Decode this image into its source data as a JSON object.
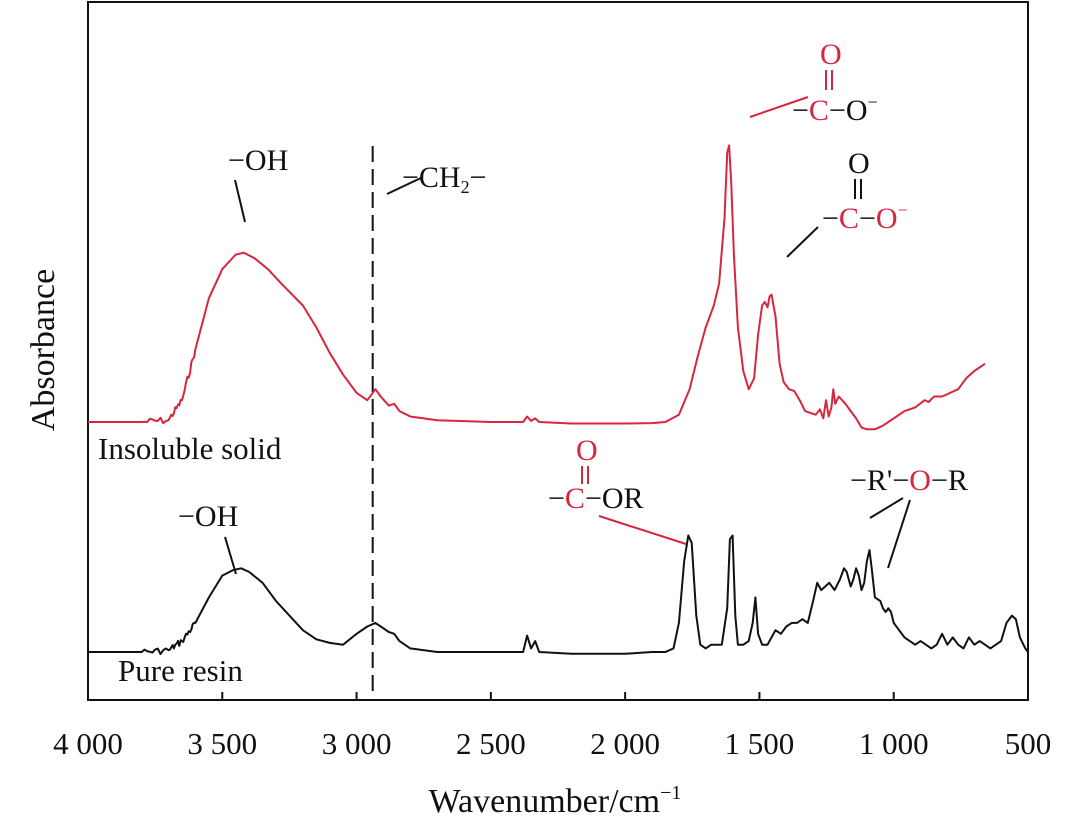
{
  "chart_data": {
    "type": "line",
    "title": "",
    "xlabel": "Wavenumber/cm",
    "xlabel_sup": "−1",
    "ylabel": "Absorbance",
    "xlim": [
      4000,
      500
    ],
    "x_reversed": true,
    "y_unit": "arbitrary (offset traces)",
    "xticks": [
      {
        "value": 4000,
        "label": "4 000"
      },
      {
        "value": 3500,
        "label": "3 500"
      },
      {
        "value": 3000,
        "label": "3 000"
      },
      {
        "value": 2500,
        "label": "2 500"
      },
      {
        "value": 2000,
        "label": "2 000"
      },
      {
        "value": 1500,
        "label": "1 500"
      },
      {
        "value": 1000,
        "label": "1 000"
      },
      {
        "value": 500,
        "label": "500"
      }
    ],
    "series": [
      {
        "name": "Insoluble solid",
        "color": "#d7263d",
        "baseline": 0.24,
        "noise_region": [
          3700,
          3950
        ],
        "points": [
          [
            4000,
            0.24
          ],
          [
            3800,
            0.24
          ],
          [
            3700,
            0.245
          ],
          [
            3650,
            0.3
          ],
          [
            3600,
            0.44
          ],
          [
            3550,
            0.58
          ],
          [
            3500,
            0.66
          ],
          [
            3450,
            0.7
          ],
          [
            3420,
            0.705
          ],
          [
            3380,
            0.69
          ],
          [
            3330,
            0.66
          ],
          [
            3280,
            0.62
          ],
          [
            3200,
            0.56
          ],
          [
            3150,
            0.5
          ],
          [
            3100,
            0.43
          ],
          [
            3050,
            0.37
          ],
          [
            3000,
            0.32
          ],
          [
            2960,
            0.3
          ],
          [
            2930,
            0.33
          ],
          [
            2910,
            0.31
          ],
          [
            2880,
            0.285
          ],
          [
            2860,
            0.29
          ],
          [
            2840,
            0.27
          ],
          [
            2800,
            0.255
          ],
          [
            2700,
            0.245
          ],
          [
            2500,
            0.24
          ],
          [
            2380,
            0.24
          ],
          [
            2365,
            0.255
          ],
          [
            2350,
            0.243
          ],
          [
            2335,
            0.25
          ],
          [
            2320,
            0.24
          ],
          [
            2200,
            0.236
          ],
          [
            2000,
            0.236
          ],
          [
            1900,
            0.237
          ],
          [
            1850,
            0.24
          ],
          [
            1800,
            0.26
          ],
          [
            1760,
            0.33
          ],
          [
            1730,
            0.42
          ],
          [
            1700,
            0.5
          ],
          [
            1670,
            0.56
          ],
          [
            1650,
            0.62
          ],
          [
            1630,
            0.8
          ],
          [
            1620,
            0.98
          ],
          [
            1613,
            1.0
          ],
          [
            1605,
            0.9
          ],
          [
            1595,
            0.7
          ],
          [
            1580,
            0.5
          ],
          [
            1560,
            0.38
          ],
          [
            1540,
            0.33
          ],
          [
            1520,
            0.36
          ],
          [
            1505,
            0.48
          ],
          [
            1490,
            0.56
          ],
          [
            1480,
            0.57
          ],
          [
            1470,
            0.555
          ],
          [
            1462,
            0.585
          ],
          [
            1455,
            0.59
          ],
          [
            1440,
            0.53
          ],
          [
            1425,
            0.4
          ],
          [
            1410,
            0.35
          ],
          [
            1390,
            0.33
          ],
          [
            1370,
            0.325
          ],
          [
            1350,
            0.3
          ],
          [
            1330,
            0.27
          ],
          [
            1310,
            0.265
          ],
          [
            1290,
            0.26
          ],
          [
            1275,
            0.275
          ],
          [
            1262,
            0.25
          ],
          [
            1252,
            0.3
          ],
          [
            1242,
            0.255
          ],
          [
            1232,
            0.28
          ],
          [
            1225,
            0.33
          ],
          [
            1218,
            0.29
          ],
          [
            1205,
            0.31
          ],
          [
            1192,
            0.3
          ],
          [
            1180,
            0.29
          ],
          [
            1160,
            0.27
          ],
          [
            1140,
            0.25
          ],
          [
            1120,
            0.225
          ],
          [
            1100,
            0.22
          ],
          [
            1070,
            0.22
          ],
          [
            1040,
            0.23
          ],
          [
            1000,
            0.25
          ],
          [
            960,
            0.27
          ],
          [
            920,
            0.28
          ],
          [
            885,
            0.3
          ],
          [
            870,
            0.295
          ],
          [
            850,
            0.31
          ],
          [
            820,
            0.31
          ],
          [
            790,
            0.32
          ],
          [
            760,
            0.33
          ],
          [
            730,
            0.36
          ],
          [
            700,
            0.38
          ],
          [
            660,
            0.4
          ]
        ]
      },
      {
        "name": "Pure resin",
        "color": "#111111",
        "baseline": 0.0,
        "noise_region": [
          3700,
          3950
        ],
        "points": [
          [
            4000,
            0.0
          ],
          [
            3800,
            0.0
          ],
          [
            3700,
            0.005
          ],
          [
            3650,
            0.03
          ],
          [
            3600,
            0.08
          ],
          [
            3550,
            0.15
          ],
          [
            3500,
            0.21
          ],
          [
            3460,
            0.225
          ],
          [
            3430,
            0.23
          ],
          [
            3400,
            0.22
          ],
          [
            3350,
            0.19
          ],
          [
            3300,
            0.14
          ],
          [
            3250,
            0.1
          ],
          [
            3200,
            0.06
          ],
          [
            3150,
            0.035
          ],
          [
            3100,
            0.025
          ],
          [
            3050,
            0.02
          ],
          [
            3000,
            0.05
          ],
          [
            2960,
            0.07
          ],
          [
            2930,
            0.08
          ],
          [
            2910,
            0.07
          ],
          [
            2880,
            0.055
          ],
          [
            2860,
            0.05
          ],
          [
            2840,
            0.03
          ],
          [
            2800,
            0.01
          ],
          [
            2700,
            0.0
          ],
          [
            2500,
            0.0
          ],
          [
            2380,
            0.0
          ],
          [
            2365,
            0.045
          ],
          [
            2350,
            0.01
          ],
          [
            2335,
            0.03
          ],
          [
            2320,
            0.0
          ],
          [
            2200,
            -0.005
          ],
          [
            2000,
            -0.005
          ],
          [
            1900,
            0.0
          ],
          [
            1850,
            0.0
          ],
          [
            1820,
            0.01
          ],
          [
            1800,
            0.08
          ],
          [
            1780,
            0.25
          ],
          [
            1765,
            0.32
          ],
          [
            1752,
            0.3
          ],
          [
            1735,
            0.1
          ],
          [
            1720,
            0.02
          ],
          [
            1700,
            0.01
          ],
          [
            1680,
            0.02
          ],
          [
            1660,
            0.02
          ],
          [
            1640,
            0.02
          ],
          [
            1620,
            0.12
          ],
          [
            1610,
            0.31
          ],
          [
            1600,
            0.32
          ],
          [
            1590,
            0.1
          ],
          [
            1580,
            0.02
          ],
          [
            1560,
            0.02
          ],
          [
            1540,
            0.03
          ],
          [
            1525,
            0.08
          ],
          [
            1515,
            0.15
          ],
          [
            1505,
            0.05
          ],
          [
            1490,
            0.02
          ],
          [
            1470,
            0.02
          ],
          [
            1455,
            0.04
          ],
          [
            1440,
            0.06
          ],
          [
            1420,
            0.05
          ],
          [
            1400,
            0.07
          ],
          [
            1380,
            0.08
          ],
          [
            1360,
            0.08
          ],
          [
            1340,
            0.09
          ],
          [
            1320,
            0.08
          ],
          [
            1300,
            0.14
          ],
          [
            1285,
            0.19
          ],
          [
            1270,
            0.17
          ],
          [
            1255,
            0.18
          ],
          [
            1240,
            0.19
          ],
          [
            1220,
            0.17
          ],
          [
            1200,
            0.2
          ],
          [
            1185,
            0.23
          ],
          [
            1175,
            0.22
          ],
          [
            1160,
            0.18
          ],
          [
            1150,
            0.2
          ],
          [
            1140,
            0.23
          ],
          [
            1130,
            0.21
          ],
          [
            1120,
            0.17
          ],
          [
            1110,
            0.19
          ],
          [
            1100,
            0.25
          ],
          [
            1090,
            0.28
          ],
          [
            1082,
            0.23
          ],
          [
            1070,
            0.15
          ],
          [
            1050,
            0.14
          ],
          [
            1040,
            0.12
          ],
          [
            1030,
            0.11
          ],
          [
            1020,
            0.12
          ],
          [
            1010,
            0.11
          ],
          [
            1000,
            0.08
          ],
          [
            980,
            0.06
          ],
          [
            960,
            0.04
          ],
          [
            940,
            0.03
          ],
          [
            920,
            0.02
          ],
          [
            900,
            0.03
          ],
          [
            880,
            0.02
          ],
          [
            860,
            0.01
          ],
          [
            840,
            0.02
          ],
          [
            820,
            0.05
          ],
          [
            800,
            0.02
          ],
          [
            780,
            0.04
          ],
          [
            760,
            0.02
          ],
          [
            740,
            0.01
          ],
          [
            720,
            0.04
          ],
          [
            700,
            0.02
          ],
          [
            680,
            0.03
          ],
          [
            660,
            0.02
          ],
          [
            640,
            0.01
          ],
          [
            620,
            0.02
          ],
          [
            600,
            0.03
          ],
          [
            580,
            0.08
          ],
          [
            560,
            0.1
          ],
          [
            545,
            0.09
          ],
          [
            530,
            0.04
          ],
          [
            510,
            0.01
          ],
          [
            500,
            0.0
          ]
        ]
      }
    ],
    "reference_line": {
      "x": 2940,
      "style": "dashed",
      "label": "−CH₂−"
    },
    "series_labels": [
      "Insoluble solid",
      "Pure resin"
    ],
    "annotations": {
      "oh_top": "−OH",
      "oh_bottom": "−OH",
      "ch2_prefix": "−CH",
      "ch2_sub": "2",
      "ch2_suffix": "−",
      "carboxylate_1": {
        "o": "O",
        "dash": "−",
        "c": "C",
        "rest": "−O",
        "sup": "−"
      },
      "carboxylate_2": {
        "o": "O",
        "dash": "−",
        "c": "C",
        "mid": "−",
        "o2": "O",
        "sup": "−"
      },
      "ester": {
        "o": "O",
        "dash": "−",
        "c": "C",
        "rest": "−OR"
      },
      "ether": {
        "pre": "−R'−",
        "o": "O",
        "post": "−R"
      }
    }
  }
}
